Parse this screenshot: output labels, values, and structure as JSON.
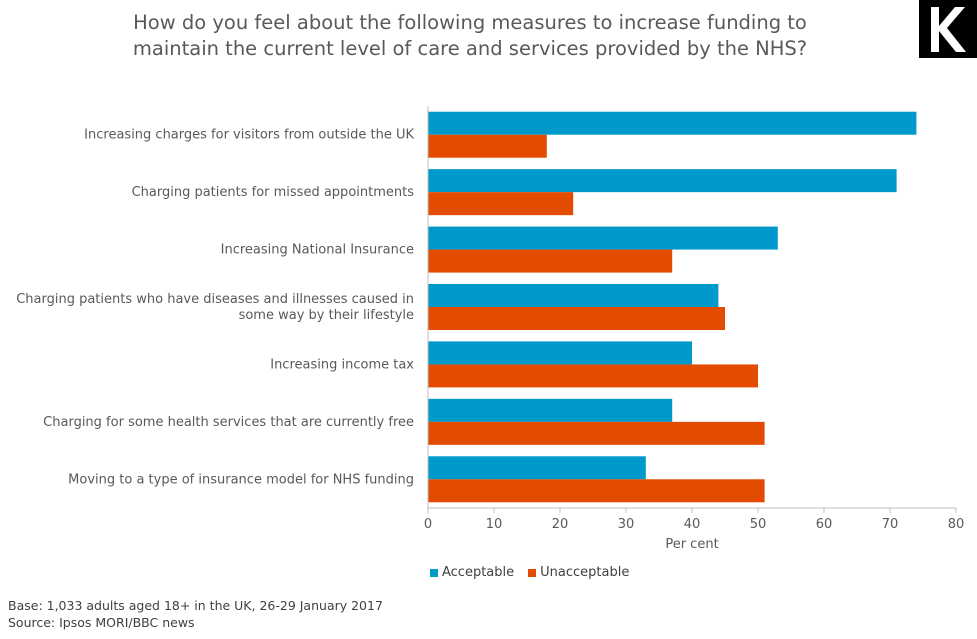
{
  "chart_data": {
    "type": "bar",
    "orientation": "horizontal",
    "title_lines": [
      "How do you feel about the following measures to increase funding to",
      "maintain the current level of care and services provided by the NHS?"
    ],
    "categories": [
      [
        "Increasing charges for visitors from outside the UK"
      ],
      [
        "Charging patients for missed appointments"
      ],
      [
        "Increasing National Insurance"
      ],
      [
        "Charging patients who have diseases and illnesses caused in",
        "some way by their lifestyle"
      ],
      [
        "Increasing income tax"
      ],
      [
        "Charging for some health services that are currently free"
      ],
      [
        "Moving to a type of insurance model for NHS funding"
      ]
    ],
    "series": [
      {
        "name": "Acceptable",
        "color": "#0099cc",
        "values": [
          74,
          71,
          53,
          44,
          40,
          37,
          33
        ]
      },
      {
        "name": "Unacceptable",
        "color": "#e24b00",
        "values": [
          18,
          22,
          37,
          45,
          50,
          51,
          51
        ]
      }
    ],
    "xlim": [
      0,
      80
    ],
    "xticks": [
      "0",
      "10",
      "20",
      "30",
      "40",
      "50",
      "60",
      "70",
      "80"
    ],
    "xlabel": "Per cent",
    "legend_position": "bottom"
  },
  "footnotes": {
    "base": "Base: 1,033 adults aged 18+ in the UK, 26-29 January 2017",
    "source": "Source: Ipsos MORI/BBC news"
  },
  "brand": {
    "logo_letter": "K",
    "logo_bg": "#000000",
    "logo_fg": "#ffffff"
  }
}
